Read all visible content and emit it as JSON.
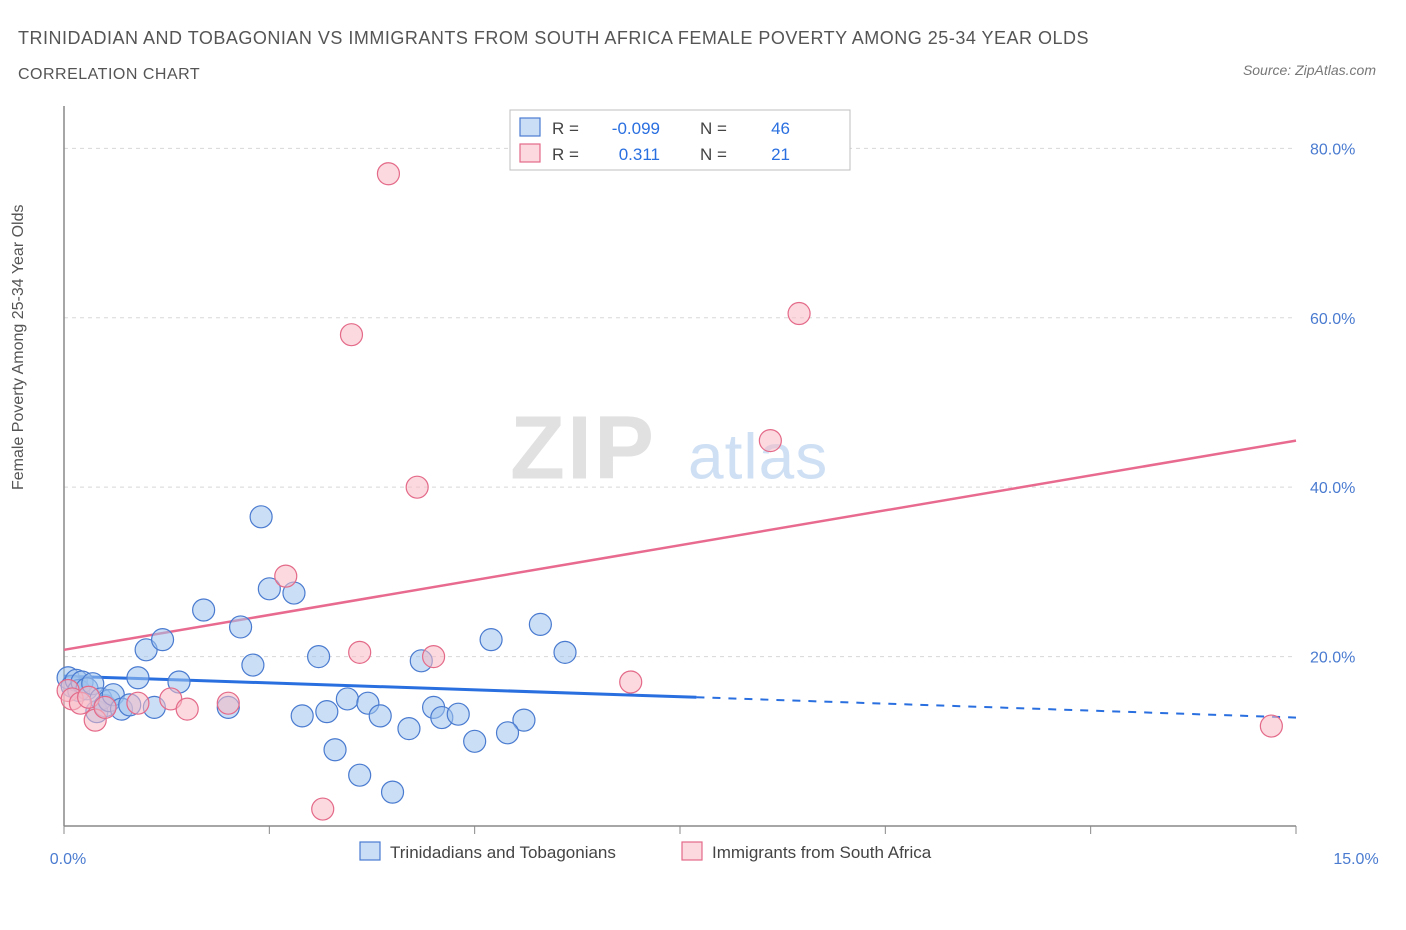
{
  "title_line1": "TRINIDADIAN AND TOBAGONIAN VS IMMIGRANTS FROM SOUTH AFRICA FEMALE POVERTY AMONG 25-34 YEAR OLDS",
  "title_line2": "CORRELATION CHART",
  "source_label": "Source: ZipAtlas.com",
  "y_label": "Female Poverty Among 25-34 Year Olds",
  "watermark": {
    "part1": "ZIP",
    "part2": "atlas"
  },
  "chart": {
    "type": "scatter",
    "background_color": "#ffffff",
    "grid_color": "#d8d8d8",
    "axis_color": "#888888",
    "tick_label_color": "#4a7bd0",
    "marker_radius": 11,
    "xlim": [
      0,
      15
    ],
    "ylim": [
      0,
      85
    ],
    "x_ticks": [
      0,
      2.5,
      5,
      7.5,
      10,
      12.5,
      15
    ],
    "x_tick_labels_shown": {
      "0": "0.0%",
      "15": "15.0%"
    },
    "y_ticks": [
      20,
      40,
      60,
      80
    ],
    "y_tick_labels": [
      "20.0%",
      "40.0%",
      "60.0%",
      "80.0%"
    ],
    "series": [
      {
        "name": "Trinidadians and Tobagonians",
        "color_fill": "#9fc3ec",
        "color_stroke": "#4a7bd0",
        "correlation_r": -0.099,
        "n": 46,
        "trend": {
          "x_solid": [
            0,
            7.7
          ],
          "y_solid": [
            17.7,
            15.2
          ],
          "x_dash": [
            7.7,
            15
          ],
          "y_dash": [
            15.2,
            12.8
          ],
          "color": "#2a6fe0",
          "width_solid": 3,
          "width_dash": 2
        },
        "points": [
          [
            0.05,
            17.5
          ],
          [
            0.1,
            16.5
          ],
          [
            0.15,
            17.2
          ],
          [
            0.18,
            16.0
          ],
          [
            0.22,
            17.0
          ],
          [
            0.28,
            16.2
          ],
          [
            0.35,
            16.8
          ],
          [
            0.4,
            13.5
          ],
          [
            0.45,
            15.0
          ],
          [
            0.5,
            14.2
          ],
          [
            0.55,
            14.8
          ],
          [
            0.6,
            15.5
          ],
          [
            0.7,
            13.8
          ],
          [
            0.8,
            14.3
          ],
          [
            0.9,
            17.5
          ],
          [
            1.0,
            20.8
          ],
          [
            1.1,
            14.0
          ],
          [
            1.2,
            22.0
          ],
          [
            1.4,
            17.0
          ],
          [
            1.7,
            25.5
          ],
          [
            2.0,
            14.0
          ],
          [
            2.15,
            23.5
          ],
          [
            2.3,
            19.0
          ],
          [
            2.4,
            36.5
          ],
          [
            2.5,
            28.0
          ],
          [
            2.8,
            27.5
          ],
          [
            3.2,
            13.5
          ],
          [
            3.3,
            9.0
          ],
          [
            3.45,
            15.0
          ],
          [
            3.6,
            6.0
          ],
          [
            3.7,
            14.5
          ],
          [
            3.85,
            13.0
          ],
          [
            4.0,
            4.0
          ],
          [
            4.2,
            11.5
          ],
          [
            4.35,
            19.5
          ],
          [
            4.5,
            14.0
          ],
          [
            4.6,
            12.8
          ],
          [
            4.8,
            13.2
          ],
          [
            5.0,
            10.0
          ],
          [
            5.2,
            22.0
          ],
          [
            5.6,
            12.5
          ],
          [
            5.8,
            23.8
          ],
          [
            6.1,
            20.5
          ],
          [
            5.4,
            11.0
          ],
          [
            3.1,
            20.0
          ],
          [
            2.9,
            13.0
          ]
        ]
      },
      {
        "name": "Immigrants from South Africa",
        "color_fill": "#f7b9c4",
        "color_stroke": "#e46a89",
        "correlation_r": 0.311,
        "n": 21,
        "trend": {
          "x": [
            0,
            15
          ],
          "y": [
            20.8,
            45.5
          ],
          "color": "#e86a8f",
          "width": 2.5
        },
        "points": [
          [
            0.05,
            16.0
          ],
          [
            0.1,
            15.0
          ],
          [
            0.2,
            14.5
          ],
          [
            0.3,
            15.2
          ],
          [
            0.38,
            12.5
          ],
          [
            0.5,
            14.0
          ],
          [
            0.9,
            14.5
          ],
          [
            1.3,
            15.0
          ],
          [
            1.5,
            13.8
          ],
          [
            2.0,
            14.5
          ],
          [
            2.7,
            29.5
          ],
          [
            3.15,
            2.0
          ],
          [
            3.5,
            58.0
          ],
          [
            3.6,
            20.5
          ],
          [
            3.95,
            77.0
          ],
          [
            4.3,
            40.0
          ],
          [
            4.5,
            20.0
          ],
          [
            6.9,
            17.0
          ],
          [
            8.6,
            45.5
          ],
          [
            8.95,
            60.5
          ],
          [
            14.7,
            11.8
          ]
        ]
      }
    ],
    "stats_legend": {
      "r_label": "R =",
      "n_label": "N =",
      "box_stroke": "#bfbfbf"
    },
    "bottom_legend": [
      {
        "label": "Trinidadians and Tobagonians",
        "fill": "#9fc3ec",
        "stroke": "#4a7bd0"
      },
      {
        "label": "Immigrants from South Africa",
        "fill": "#f7b9c4",
        "stroke": "#e46a89"
      }
    ]
  }
}
